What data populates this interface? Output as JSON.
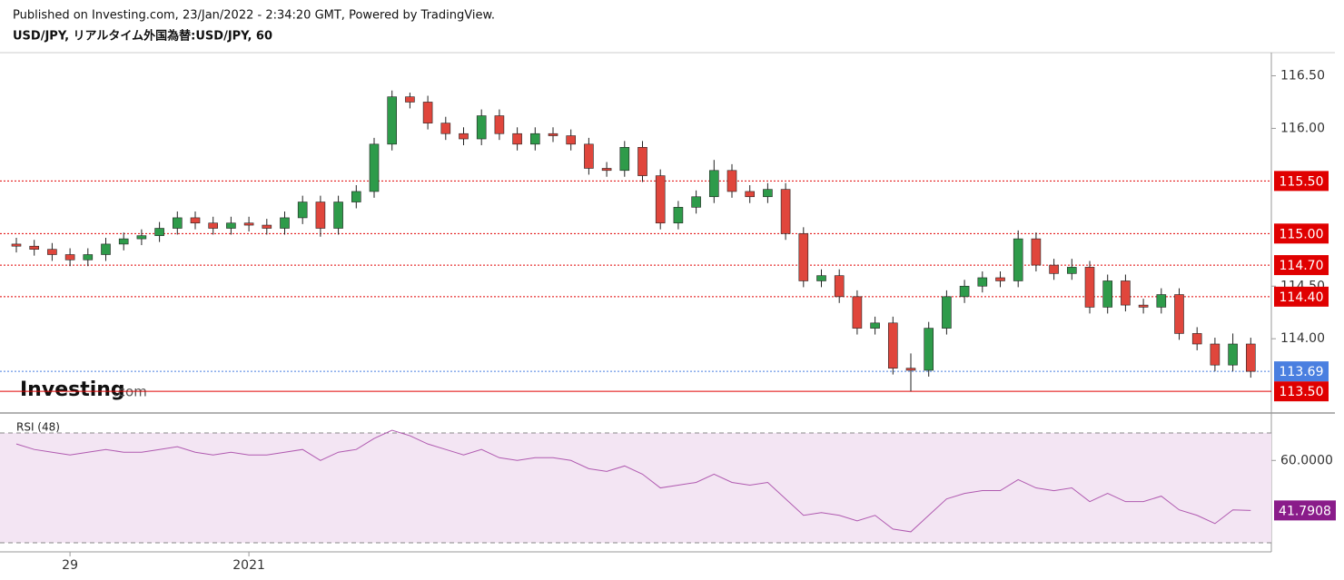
{
  "header": {
    "published": "Published on Investing.com, 23/Jan/2022 - 2:34:20 GMT, Powered by TradingView.",
    "symbol": "USD/JPY, リアルタイム外国為替:USD/JPY, 60"
  },
  "logo": {
    "brand": "Investing",
    "suffix": ".com"
  },
  "chart_data": [
    {
      "type": "candlestick",
      "categories": [
        null,
        null,
        null,
        "29",
        null,
        null,
        null,
        null,
        null,
        null,
        null,
        null,
        null,
        "2021",
        null,
        null,
        null,
        null,
        null,
        null,
        null,
        null,
        null,
        null,
        null,
        null,
        null,
        null,
        null,
        null,
        null,
        null,
        null,
        null,
        null,
        null,
        null,
        null,
        null,
        null,
        null,
        null,
        null,
        null,
        null,
        null,
        null,
        null,
        null,
        null,
        null,
        null,
        null,
        null,
        null,
        null,
        null,
        null,
        null,
        null,
        null,
        null,
        null,
        null,
        null,
        null,
        null,
        null,
        null,
        null
      ],
      "open": [
        114.9,
        114.88,
        114.85,
        114.8,
        114.75,
        114.8,
        114.9,
        114.95,
        114.98,
        115.05,
        115.15,
        115.1,
        115.05,
        115.1,
        115.08,
        115.05,
        115.15,
        115.3,
        115.05,
        115.3,
        115.4,
        115.85,
        116.3,
        116.25,
        116.05,
        115.95,
        115.9,
        116.12,
        115.95,
        115.85,
        115.95,
        115.93,
        115.85,
        115.62,
        115.6,
        115.82,
        115.55,
        115.1,
        115.25,
        115.35,
        115.6,
        115.4,
        115.35,
        115.42,
        115.0,
        114.55,
        114.6,
        114.4,
        114.1,
        114.15,
        113.72,
        113.7,
        114.1,
        114.4,
        114.5,
        114.58,
        114.55,
        114.95,
        114.7,
        114.62,
        114.68,
        114.3,
        114.55,
        114.32,
        114.3,
        114.42,
        114.05,
        113.95,
        113.75,
        113.95
      ],
      "high": [
        114.96,
        114.94,
        114.91,
        114.86,
        114.86,
        114.96,
        115.01,
        115.04,
        115.11,
        115.21,
        115.21,
        115.16,
        115.16,
        115.16,
        115.14,
        115.21,
        115.36,
        115.36,
        115.36,
        115.46,
        115.91,
        116.36,
        116.34,
        116.31,
        116.11,
        116.01,
        116.18,
        116.18,
        116.01,
        116.01,
        116.01,
        115.99,
        115.91,
        115.68,
        115.88,
        115.88,
        115.61,
        115.31,
        115.41,
        115.7,
        115.66,
        115.46,
        115.48,
        115.48,
        115.06,
        114.66,
        114.66,
        114.46,
        114.21,
        114.21,
        113.86,
        114.16,
        114.46,
        114.56,
        114.64,
        114.64,
        115.03,
        115.01,
        114.76,
        114.76,
        114.74,
        114.61,
        114.61,
        114.38,
        114.48,
        114.48,
        114.11,
        114.01,
        114.05,
        114.01
      ],
      "low": [
        114.82,
        114.79,
        114.74,
        114.69,
        114.69,
        114.74,
        114.84,
        114.89,
        114.92,
        114.99,
        115.04,
        114.99,
        114.99,
        115.02,
        114.99,
        114.99,
        115.09,
        114.97,
        114.99,
        115.24,
        115.34,
        115.79,
        116.19,
        115.99,
        115.89,
        115.84,
        115.84,
        115.89,
        115.79,
        115.79,
        115.87,
        115.79,
        115.56,
        115.54,
        115.54,
        115.49,
        115.04,
        115.04,
        115.19,
        115.29,
        115.34,
        115.29,
        115.29,
        114.94,
        114.49,
        114.49,
        114.34,
        114.04,
        114.04,
        113.66,
        113.5,
        113.64,
        114.04,
        114.34,
        114.44,
        114.49,
        114.49,
        114.64,
        114.56,
        114.56,
        114.24,
        114.24,
        114.26,
        114.24,
        114.24,
        113.99,
        113.89,
        113.69,
        113.69,
        113.63
      ],
      "close": [
        114.88,
        114.85,
        114.8,
        114.75,
        114.8,
        114.9,
        114.95,
        114.98,
        115.05,
        115.15,
        115.1,
        115.05,
        115.1,
        115.08,
        115.05,
        115.15,
        115.3,
        115.05,
        115.3,
        115.4,
        115.85,
        116.3,
        116.25,
        116.05,
        115.95,
        115.9,
        116.12,
        115.95,
        115.85,
        115.95,
        115.93,
        115.85,
        115.62,
        115.6,
        115.82,
        115.55,
        115.1,
        115.25,
        115.35,
        115.6,
        115.4,
        115.35,
        115.42,
        115.0,
        114.55,
        114.6,
        114.4,
        114.1,
        114.15,
        113.72,
        113.7,
        114.1,
        114.4,
        114.5,
        114.58,
        114.55,
        114.95,
        114.7,
        114.62,
        114.68,
        114.3,
        114.55,
        114.32,
        114.3,
        114.42,
        114.05,
        113.95,
        113.75,
        113.95,
        113.69
      ],
      "up_color": "#2e9b4a",
      "down_color": "#e0463c",
      "ylim": [
        113.32,
        116.72
      ],
      "yticks": [
        {
          "value": 116.5,
          "label": "116.50"
        },
        {
          "value": 116.0,
          "label": "116.00"
        },
        {
          "value": 114.5,
          "label": "114.50"
        },
        {
          "value": 114.0,
          "label": "114.00"
        }
      ],
      "levels": [
        {
          "value": 115.5,
          "label": "115.50",
          "style": "dotted"
        },
        {
          "value": 115.0,
          "label": "115.00",
          "style": "dotted"
        },
        {
          "value": 114.7,
          "label": "114.70",
          "style": "dotted"
        },
        {
          "value": 114.4,
          "label": "114.40",
          "style": "dotted"
        },
        {
          "value": 113.5,
          "label": "113.50",
          "style": "solid"
        }
      ],
      "level_color": "#e00000",
      "current": {
        "value": 113.69,
        "label": "113.69",
        "color": "#4a7fe0"
      }
    },
    {
      "type": "line",
      "name": "RSI (48)",
      "values": [
        66,
        64,
        63,
        62,
        63,
        64,
        63,
        63,
        64,
        65,
        63,
        62,
        63,
        62,
        62,
        63,
        64,
        60,
        63,
        64,
        68,
        71,
        69,
        66,
        64,
        62,
        64,
        61,
        60,
        61,
        61,
        60,
        57,
        56,
        58,
        55,
        50,
        51,
        52,
        55,
        52,
        51,
        52,
        46,
        40,
        41,
        40,
        38,
        40,
        35,
        34,
        40,
        46,
        48,
        49,
        49,
        53,
        50,
        49,
        50,
        45,
        48,
        45,
        45,
        47,
        42,
        40,
        37,
        42,
        41.7908
      ],
      "value_labels": [
        null,
        null,
        null,
        null,
        null,
        null,
        null,
        null,
        null,
        null,
        null,
        null,
        null,
        null,
        null,
        null,
        null,
        null,
        null,
        null,
        null,
        null,
        null,
        null,
        null,
        null,
        null,
        null,
        null,
        null,
        null,
        null,
        null,
        null,
        null,
        null,
        null,
        null,
        null,
        null,
        null,
        null,
        null,
        null,
        null,
        null,
        null,
        null,
        null,
        null,
        null,
        null,
        null,
        null,
        null,
        null,
        null,
        null,
        null,
        null,
        null,
        null,
        null,
        null,
        null,
        null,
        null,
        null,
        null,
        "41.7908"
      ],
      "color": "#b05ab0",
      "badge_color": "#8a1c8a",
      "bands": [
        30,
        70
      ],
      "ylim": [
        26.7,
        76.3
      ],
      "yticks": [
        {
          "value": 60,
          "label": "60.0000"
        }
      ]
    }
  ]
}
